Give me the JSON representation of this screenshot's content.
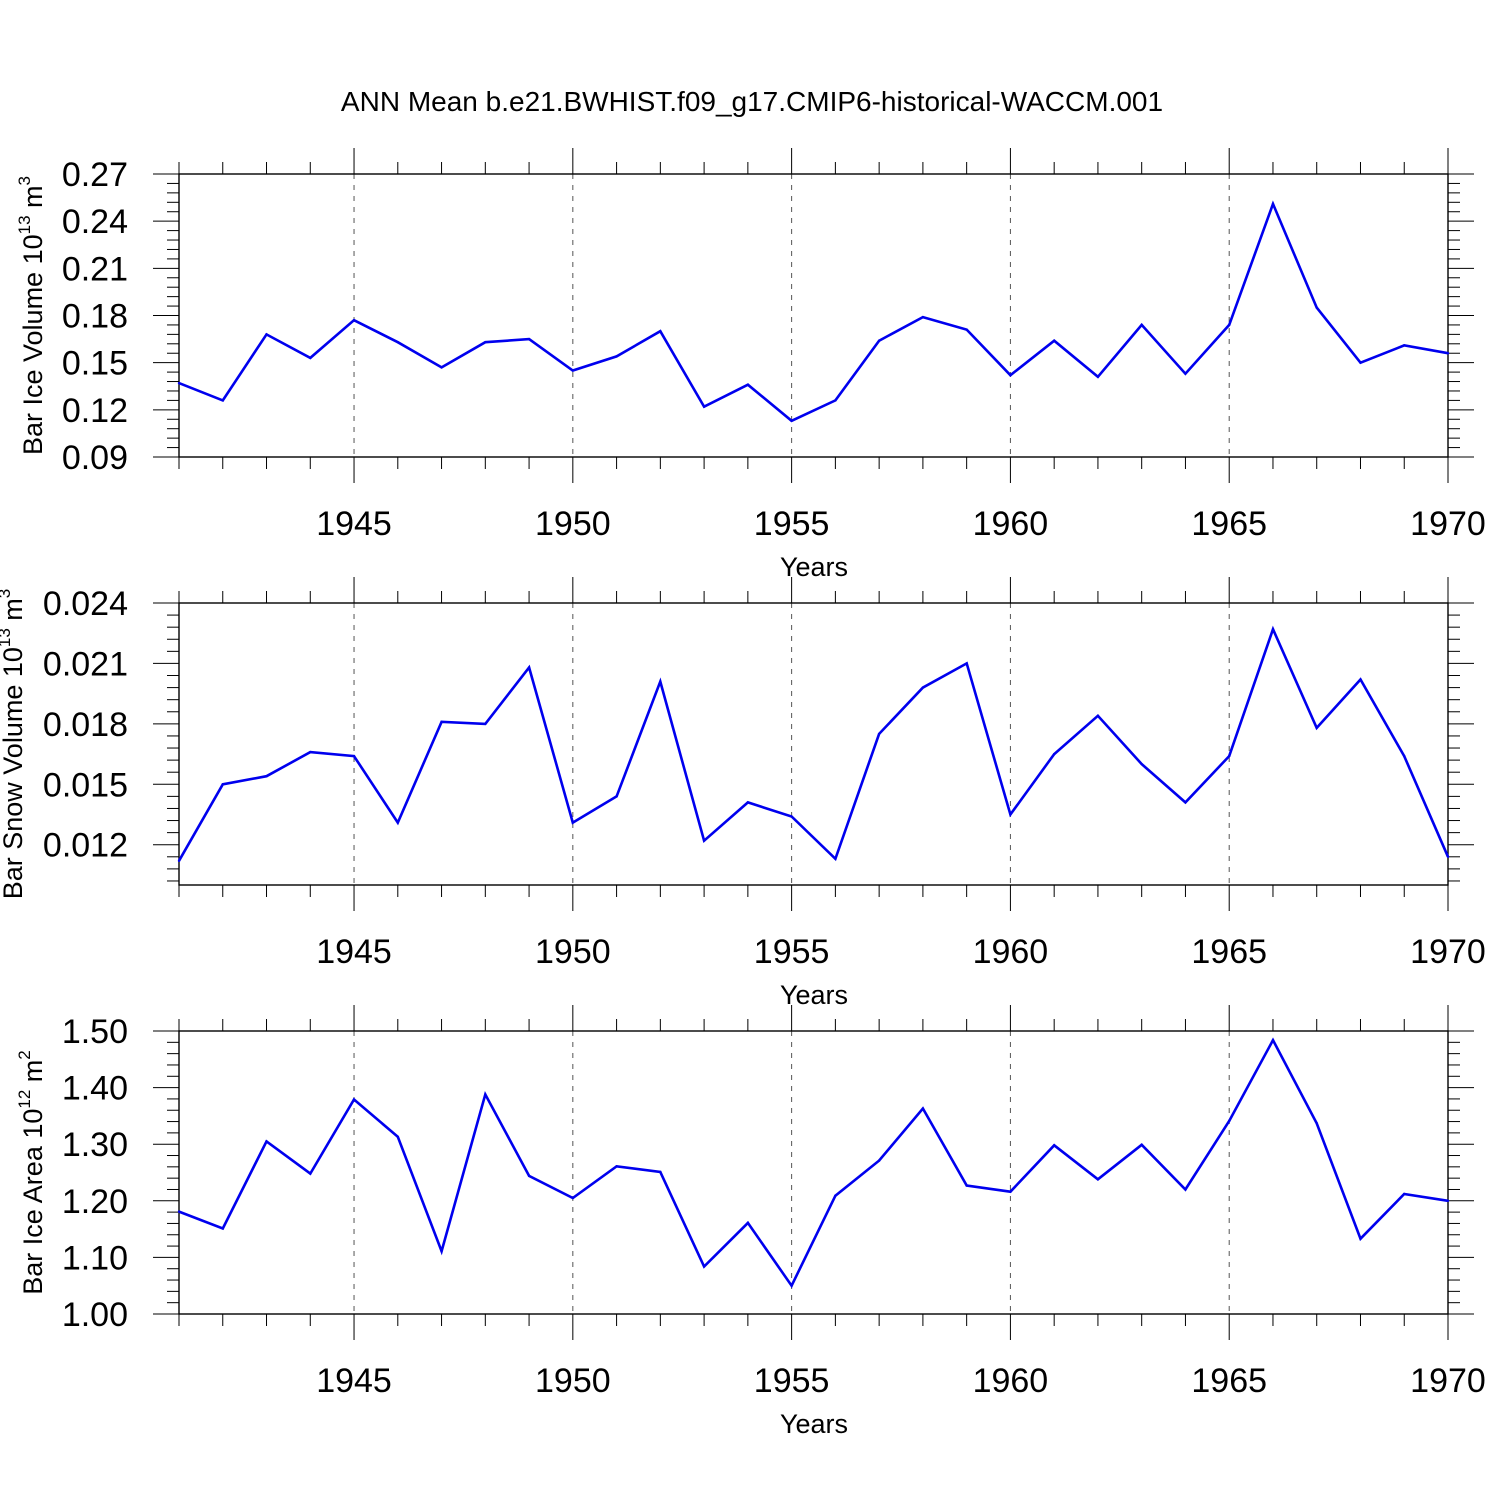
{
  "title": "ANN Mean b.e21.BWHIST.f09_g17.CMIP6-historical-WACCM.001",
  "line_color": "#0000ee",
  "chart_data": [
    {
      "type": "line",
      "xlabel": "Years",
      "ylabel": {
        "prefix": "Bar Ice Volume 10",
        "exp": "13",
        "mid": " m",
        "unit_exp": "3"
      },
      "xlim": [
        1941,
        1970
      ],
      "ylim": [
        0.09,
        0.27
      ],
      "xticks": [
        1945,
        1950,
        1955,
        1960,
        1965,
        1970
      ],
      "xtick_labels": [
        "1945",
        "1950",
        "1955",
        "1960",
        "1965",
        "1970"
      ],
      "yticks": [
        0.09,
        0.12,
        0.15,
        0.18,
        0.21,
        0.24,
        0.27
      ],
      "ytick_labels": [
        "0.09",
        "0.12",
        "0.15",
        "0.18",
        "0.21",
        "0.24",
        "0.27"
      ],
      "grid": "vertical-dashed",
      "x": [
        1941,
        1942,
        1943,
        1944,
        1945,
        1946,
        1947,
        1948,
        1949,
        1950,
        1951,
        1952,
        1953,
        1954,
        1955,
        1956,
        1957,
        1958,
        1959,
        1960,
        1961,
        1962,
        1963,
        1964,
        1965,
        1966,
        1967,
        1968,
        1969,
        1970
      ],
      "y": [
        0.137,
        0.126,
        0.168,
        0.153,
        0.177,
        0.163,
        0.147,
        0.163,
        0.165,
        0.145,
        0.154,
        0.17,
        0.122,
        0.136,
        0.113,
        0.126,
        0.164,
        0.179,
        0.171,
        0.142,
        0.164,
        0.141,
        0.174,
        0.143,
        0.174,
        0.251,
        0.185,
        0.15,
        0.161,
        0.156
      ]
    },
    {
      "type": "line",
      "xlabel": "Years",
      "ylabel": {
        "prefix": "Bar Snow Volume 10",
        "exp": "13",
        "mid": " m",
        "unit_exp": "3"
      },
      "xlim": [
        1941,
        1970
      ],
      "ylim": [
        0.01,
        0.024
      ],
      "xticks": [
        1945,
        1950,
        1955,
        1960,
        1965,
        1970
      ],
      "xtick_labels": [
        "1945",
        "1950",
        "1955",
        "1960",
        "1965",
        "1970"
      ],
      "yticks": [
        0.012,
        0.015,
        0.018,
        0.021,
        0.024
      ],
      "ytick_labels": [
        "0.012",
        "0.015",
        "0.018",
        "0.021",
        "0.024"
      ],
      "grid": "vertical-dashed",
      "x": [
        1941,
        1942,
        1943,
        1944,
        1945,
        1946,
        1947,
        1948,
        1949,
        1950,
        1951,
        1952,
        1953,
        1954,
        1955,
        1956,
        1957,
        1958,
        1959,
        1960,
        1961,
        1962,
        1963,
        1964,
        1965,
        1966,
        1967,
        1968,
        1969,
        1970
      ],
      "y": [
        0.0112,
        0.015,
        0.0154,
        0.0166,
        0.0164,
        0.0131,
        0.0181,
        0.018,
        0.0208,
        0.0131,
        0.0144,
        0.0201,
        0.0122,
        0.0141,
        0.0134,
        0.0113,
        0.0175,
        0.0198,
        0.021,
        0.0135,
        0.0165,
        0.0184,
        0.016,
        0.0141,
        0.0164,
        0.0227,
        0.0178,
        0.0202,
        0.0164,
        0.0114
      ]
    },
    {
      "type": "line",
      "xlabel": "Years",
      "ylabel": {
        "prefix": "Bar Ice Area 10",
        "exp": "12",
        "mid": " m",
        "unit_exp": "2"
      },
      "xlim": [
        1941,
        1970
      ],
      "ylim": [
        1.0,
        1.5
      ],
      "xticks": [
        1945,
        1950,
        1955,
        1960,
        1965,
        1970
      ],
      "xtick_labels": [
        "1945",
        "1950",
        "1955",
        "1960",
        "1965",
        "1970"
      ],
      "yticks": [
        1.0,
        1.1,
        1.2,
        1.3,
        1.4,
        1.5
      ],
      "ytick_labels": [
        "1.00",
        "1.10",
        "1.20",
        "1.30",
        "1.40",
        "1.50"
      ],
      "grid": "vertical-dashed",
      "x": [
        1941,
        1942,
        1943,
        1944,
        1945,
        1946,
        1947,
        1948,
        1949,
        1950,
        1951,
        1952,
        1953,
        1954,
        1955,
        1956,
        1957,
        1958,
        1959,
        1960,
        1961,
        1962,
        1963,
        1964,
        1965,
        1966,
        1967,
        1968,
        1969,
        1970
      ],
      "y": [
        1.181,
        1.151,
        1.305,
        1.248,
        1.379,
        1.313,
        1.111,
        1.388,
        1.244,
        1.205,
        1.261,
        1.251,
        1.084,
        1.161,
        1.05,
        1.209,
        1.271,
        1.363,
        1.227,
        1.216,
        1.298,
        1.238,
        1.299,
        1.22,
        1.341,
        1.484,
        1.337,
        1.133,
        1.212,
        1.2
      ]
    }
  ]
}
